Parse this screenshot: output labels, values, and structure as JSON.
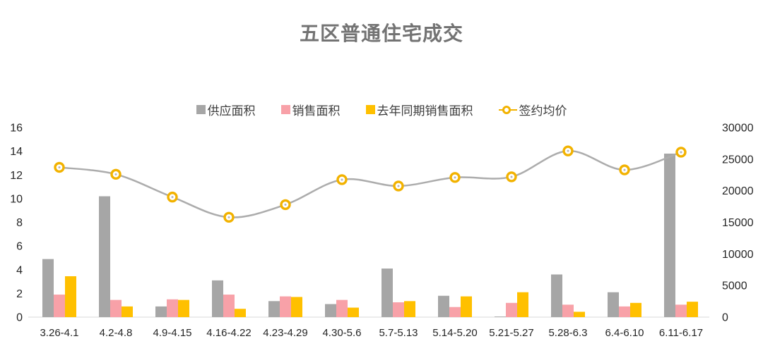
{
  "title": "五区普通住宅成交",
  "chart_data": {
    "type": "bar",
    "subtype": "grouped bars + smoothed line (dual axis)",
    "title": "五区普通住宅成交",
    "categories": [
      "3.26-4.1",
      "4.2-4.8",
      "4.9-4.15",
      "4.16-4.22",
      "4.23-4.29",
      "4.30-5.6",
      "5.7-5.13",
      "5.14-5.20",
      "5.21-5.27",
      "5.28-6.3",
      "6.4-6.10",
      "6.11-6.17"
    ],
    "series": [
      {
        "name": "供应面积",
        "type": "bar",
        "axis": "left",
        "color": "#A6A6A6",
        "values": [
          4.9,
          10.2,
          0.9,
          3.1,
          1.35,
          1.1,
          4.1,
          1.8,
          0.05,
          3.6,
          2.1,
          13.8
        ]
      },
      {
        "name": "销售面积",
        "type": "bar",
        "axis": "left",
        "color": "#F8A1A8",
        "values": [
          1.9,
          1.45,
          1.5,
          1.9,
          1.75,
          1.45,
          1.25,
          0.85,
          1.2,
          1.05,
          0.9,
          1.05
        ]
      },
      {
        "name": "去年同期销售面积",
        "type": "bar",
        "axis": "left",
        "color": "#FFC000",
        "values": [
          3.45,
          0.9,
          1.45,
          0.7,
          1.7,
          0.8,
          1.35,
          1.75,
          2.1,
          0.45,
          1.2,
          1.3
        ]
      },
      {
        "name": "签约均价",
        "type": "line",
        "axis": "right",
        "line_color": "#ACACAC",
        "marker_color": "#F2B200",
        "marker_fill": "#FFFFFF",
        "values": [
          23700,
          22600,
          19000,
          15800,
          17800,
          21750,
          20750,
          22100,
          22200,
          26300,
          23300,
          26100
        ]
      }
    ],
    "left_axis": {
      "min": 0,
      "max": 16,
      "step": 2,
      "ticks": [
        "0",
        "2",
        "4",
        "6",
        "8",
        "10",
        "12",
        "14",
        "16"
      ]
    },
    "right_axis": {
      "min": 0,
      "max": 30000,
      "step": 5000,
      "ticks": [
        "0",
        "5000",
        "10000",
        "15000",
        "20000",
        "25000",
        "30000"
      ]
    },
    "legend_position": "top",
    "grid": false,
    "axis_line_color": "#D9D9D9",
    "text_color": "#262626",
    "title_color": "#737373",
    "background": "#FFFFFF"
  }
}
